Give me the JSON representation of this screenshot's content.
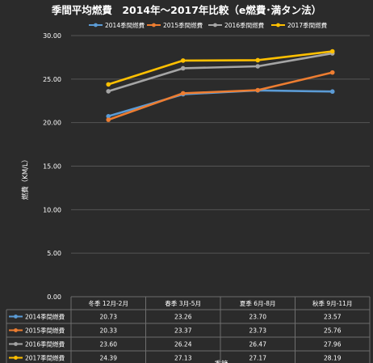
{
  "chart_data": {
    "type": "line",
    "title": "季間平均燃費　2014年～2017年比較（e燃費･満タン法）",
    "ylabel": "燃費（KM/L）",
    "xlabel": "季節",
    "ylim": [
      0,
      30
    ],
    "yticks": [
      "0.00",
      "5.00",
      "10.00",
      "15.00",
      "20.00",
      "25.00",
      "30.00"
    ],
    "grid": true,
    "legend": "top",
    "categories": [
      "冬季 12月-2月",
      "春季 3月-5月",
      "夏季 6月-8月",
      "秋季 9月-11月"
    ],
    "series": [
      {
        "name": "2014季間燃費",
        "color": "#5b9bd5",
        "values": [
          20.73,
          23.26,
          23.7,
          23.57
        ],
        "labels": [
          "20.73",
          "23.26",
          "23.70",
          "23.57"
        ]
      },
      {
        "name": "2015季間燃費",
        "color": "#ed7d31",
        "values": [
          20.33,
          23.37,
          23.73,
          25.76
        ],
        "labels": [
          "20.33",
          "23.37",
          "23.73",
          "25.76"
        ]
      },
      {
        "name": "2016季間燃費",
        "color": "#a5a5a5",
        "values": [
          23.6,
          26.24,
          26.47,
          27.96
        ],
        "labels": [
          "23.60",
          "26.24",
          "26.47",
          "27.96"
        ]
      },
      {
        "name": "2017季間燃費",
        "color": "#ffc000",
        "values": [
          24.39,
          27.13,
          27.17,
          28.19
        ],
        "labels": [
          "24.39",
          "27.13",
          "27.17",
          "28.19"
        ]
      }
    ]
  }
}
